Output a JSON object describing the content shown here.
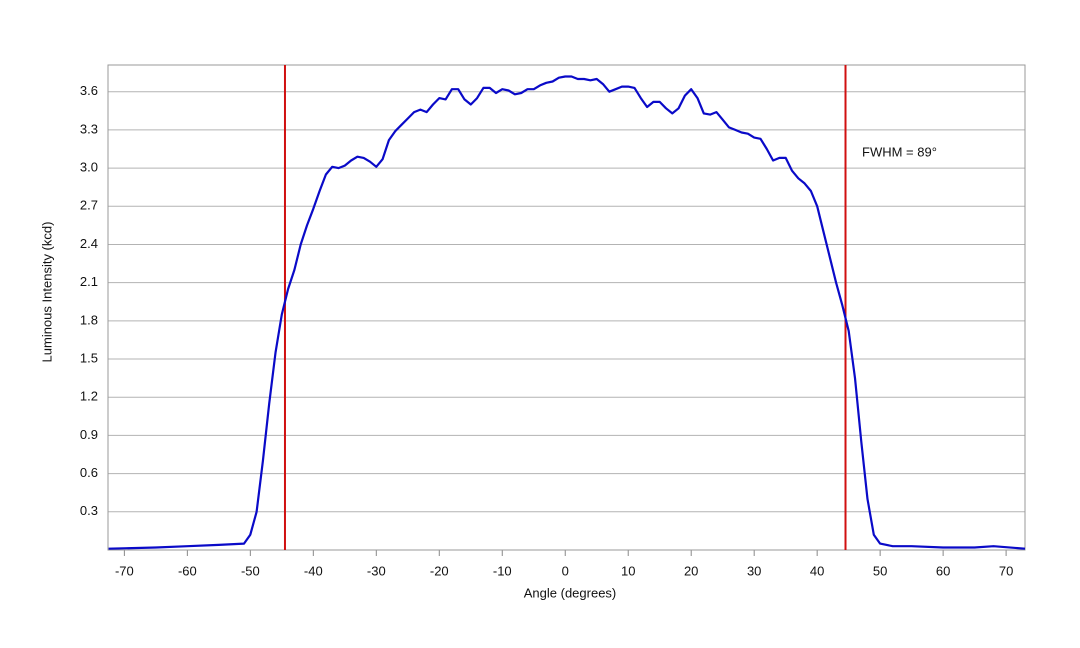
{
  "chart_data": {
    "type": "line",
    "x_label": "Angle (degrees)",
    "y_label": "Luminous Intensity (kcd)",
    "x": [
      -72.5,
      -65,
      -60,
      -55,
      -51,
      -50,
      -49,
      -48,
      -47,
      -46,
      -45,
      -44,
      -43,
      -42,
      -41,
      -40,
      -39,
      -38,
      -37,
      -36,
      -35,
      -34,
      -33,
      -32,
      -31,
      -30,
      -29,
      -28,
      -27,
      -26,
      -25,
      -24,
      -23,
      -22,
      -21,
      -20,
      -19,
      -18,
      -17,
      -16,
      -15,
      -14,
      -13,
      -12,
      -11,
      -10,
      -9,
      -8,
      -7,
      -6,
      -5,
      -4,
      -3,
      -2,
      -1,
      0,
      1,
      2,
      3,
      4,
      5,
      6,
      7,
      8,
      9,
      10,
      11,
      12,
      13,
      14,
      15,
      16,
      17,
      18,
      19,
      20,
      21,
      22,
      23,
      24,
      25,
      26,
      27,
      28,
      29,
      30,
      31,
      32,
      33,
      34,
      35,
      36,
      37,
      38,
      39,
      40,
      41,
      42,
      43,
      44,
      45,
      46,
      47,
      48,
      49,
      50,
      52,
      55,
      60,
      65,
      68,
      73
    ],
    "values": [
      0.01,
      0.02,
      0.03,
      0.04,
      0.05,
      0.12,
      0.3,
      0.7,
      1.15,
      1.55,
      1.85,
      2.05,
      2.2,
      2.4,
      2.55,
      2.68,
      2.82,
      2.95,
      3.01,
      3.0,
      3.02,
      3.06,
      3.09,
      3.08,
      3.05,
      3.01,
      3.07,
      3.22,
      3.29,
      3.34,
      3.39,
      3.44,
      3.46,
      3.44,
      3.5,
      3.55,
      3.54,
      3.62,
      3.62,
      3.54,
      3.5,
      3.55,
      3.63,
      3.63,
      3.59,
      3.62,
      3.61,
      3.58,
      3.59,
      3.62,
      3.62,
      3.65,
      3.67,
      3.68,
      3.71,
      3.72,
      3.72,
      3.7,
      3.7,
      3.69,
      3.7,
      3.66,
      3.6,
      3.62,
      3.64,
      3.64,
      3.63,
      3.55,
      3.48,
      3.52,
      3.52,
      3.47,
      3.43,
      3.47,
      3.57,
      3.62,
      3.55,
      3.43,
      3.42,
      3.44,
      3.38,
      3.32,
      3.3,
      3.28,
      3.27,
      3.24,
      3.23,
      3.15,
      3.06,
      3.08,
      3.08,
      2.98,
      2.92,
      2.88,
      2.82,
      2.7,
      2.5,
      2.3,
      2.1,
      1.92,
      1.72,
      1.35,
      0.85,
      0.4,
      0.12,
      0.05,
      0.03,
      0.03,
      0.02,
      0.02,
      0.03,
      0.01
    ],
    "color": "#0a0ac8",
    "xlim": [
      -72.6,
      73
    ],
    "ylim": [
      0,
      3.81
    ],
    "xticks": [
      -70,
      -60,
      -50,
      -40,
      -30,
      -20,
      -10,
      0,
      10,
      20,
      30,
      40,
      50,
      60,
      70
    ],
    "yticks": [
      0.3,
      0.6,
      0.9,
      1.2,
      1.5,
      1.8,
      2.1,
      2.4,
      2.7,
      {
        "value": 3,
        "label": "3.0"
      },
      3.3,
      3.6
    ],
    "grid": true,
    "vlines": [
      -44.5,
      44.5
    ],
    "vline_color": "#d01010",
    "annotation": "FWHM = 89°"
  }
}
